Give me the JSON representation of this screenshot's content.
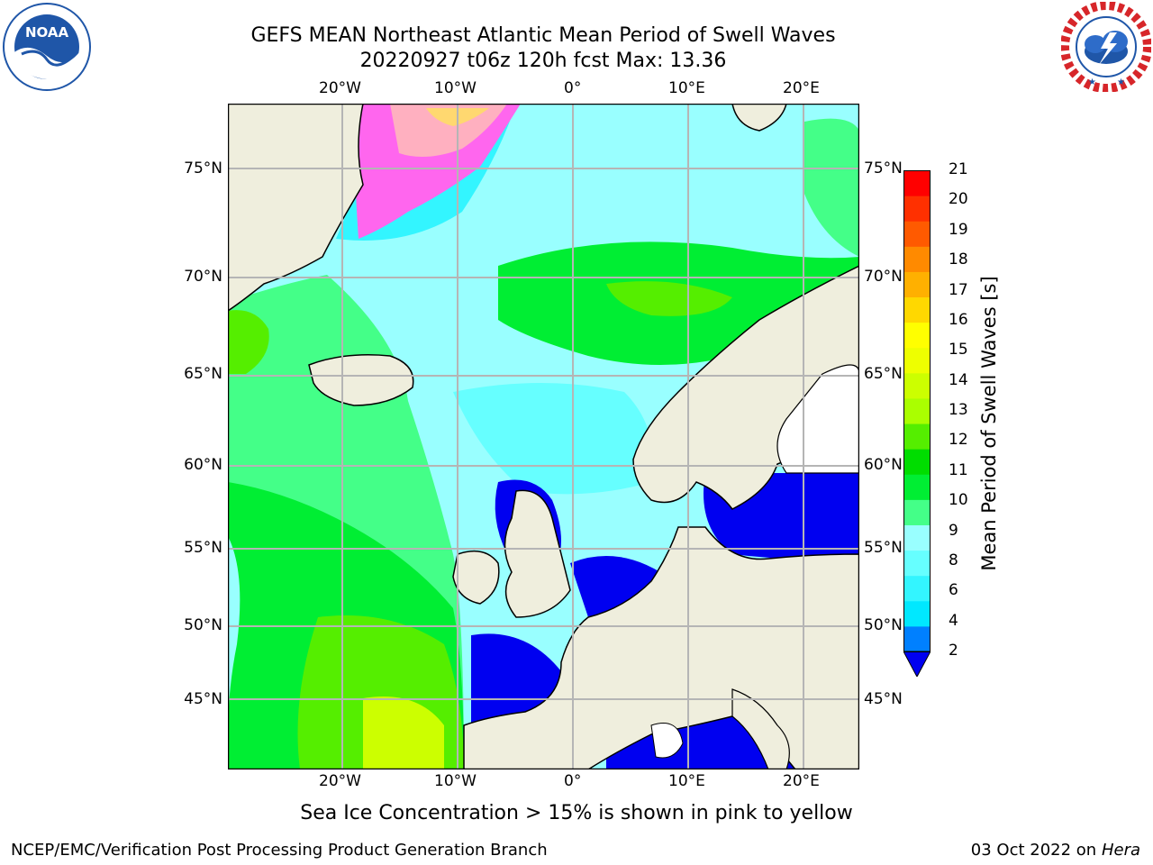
{
  "title": {
    "line1": "GEFS MEAN Northeast Atlantic Mean Period of Swell Waves",
    "line2": "20220927 t06z 120h fcst   Max: 13.36"
  },
  "logos": {
    "left": {
      "text": "NOAA",
      "ring_text": "NATIONAL OCEANIC AND ATMOSPHERIC ADMINISTRATION · U.S. DEPARTMENT OF COMMERCE",
      "color": "#1f56a8"
    },
    "right": {
      "ring_text": "NATIONAL WEATHER SERVICE",
      "color": "#d7262a"
    }
  },
  "map": {
    "lon_labels": [
      "20°W",
      "10°W",
      "0°",
      "10°E",
      "20°E"
    ],
    "lat_labels_left": [
      "75°N",
      "70°N",
      "65°N",
      "60°N",
      "55°N",
      "50°N",
      "45°N"
    ],
    "lat_labels_right": [
      "75°N",
      "70°N",
      "65°N",
      "60°N",
      "55°N",
      "50°N",
      "45°N"
    ],
    "land_color": "#efeedd",
    "grid_color": "#b5b5b5"
  },
  "colorbar": {
    "label": "Mean Period of Swell Waves [s]",
    "ticks": [
      "21",
      "20",
      "19",
      "18",
      "17",
      "16",
      "15",
      "14",
      "13",
      "12",
      "11",
      "10",
      "9",
      "8",
      "6",
      "4",
      "2"
    ],
    "colors": [
      "#0000f0",
      "#0080ff",
      "#00e8ff",
      "#33f5ff",
      "#66ffff",
      "#99ffff",
      "#44ff88",
      "#00ee33",
      "#00dd00",
      "#55ee00",
      "#aaff00",
      "#ccff00",
      "#eeff00",
      "#ffff00",
      "#ffd800",
      "#ffb000",
      "#ff8a00",
      "#ff5a00",
      "#ff3000",
      "#ff0000"
    ]
  },
  "caption": "Sea Ice Concentration > 15% is shown in pink to yellow",
  "credits": {
    "left": "NCEP/EMC/Verification Post Processing Product Generation Branch",
    "right_date": "03 Oct 2022 on",
    "right_host": "Hera"
  }
}
